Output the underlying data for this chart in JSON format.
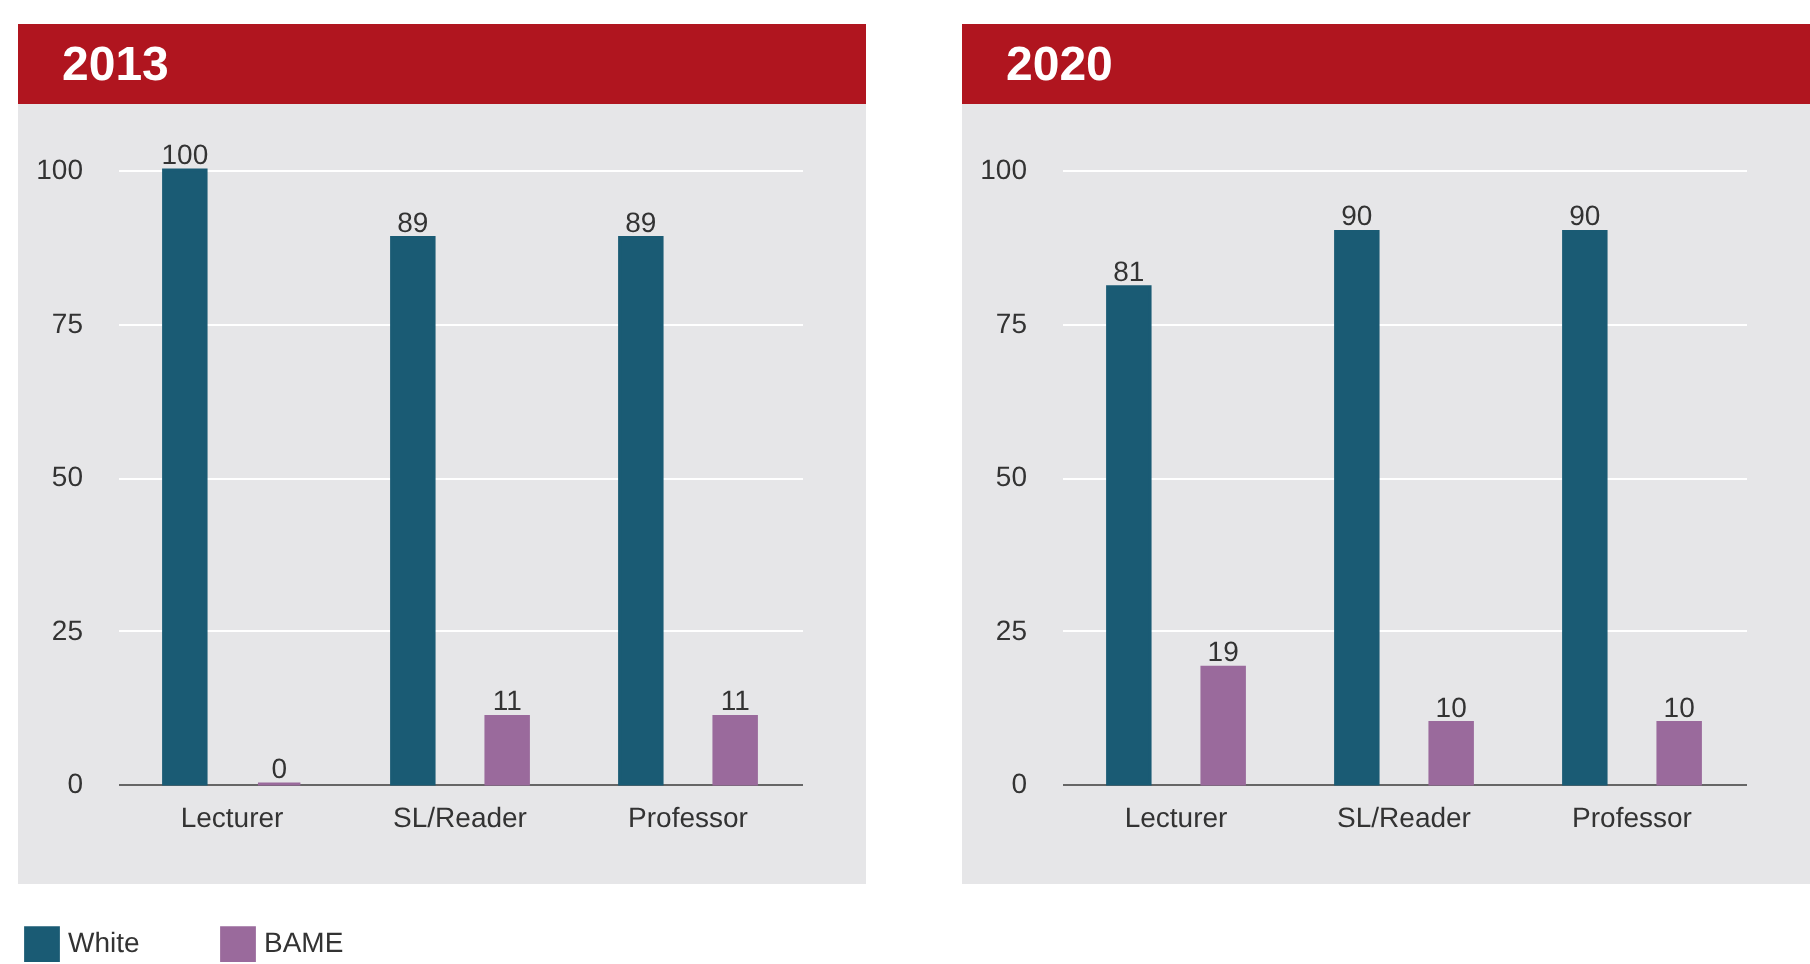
{
  "chart_data": [
    {
      "type": "bar",
      "title": "2013",
      "categories": [
        "Lecturer",
        "SL/Reader",
        "Professor"
      ],
      "series": [
        {
          "name": "White",
          "color": "#1a5b74",
          "values": [
            100,
            89,
            89
          ]
        },
        {
          "name": "BAME",
          "color": "#9a6a9c",
          "values": [
            0,
            11,
            11
          ]
        }
      ],
      "ylim": [
        0,
        100
      ],
      "yticks": [
        0,
        25,
        50,
        75,
        100
      ],
      "grid": "y",
      "data_labels": true,
      "legend": "bottom left"
    },
    {
      "type": "bar",
      "title": "2020",
      "categories": [
        "Lecturer",
        "SL/Reader",
        "Professor"
      ],
      "series": [
        {
          "color": "#1a5b74",
          "values": [
            81,
            90,
            90
          ]
        },
        {
          "color": "#9a6a9c",
          "values": [
            19,
            10,
            10
          ]
        }
      ],
      "ylim": [
        0,
        100
      ],
      "yticks": [
        0,
        25,
        50,
        75,
        100
      ],
      "grid": "y",
      "data_labels": true
    }
  ]
}
